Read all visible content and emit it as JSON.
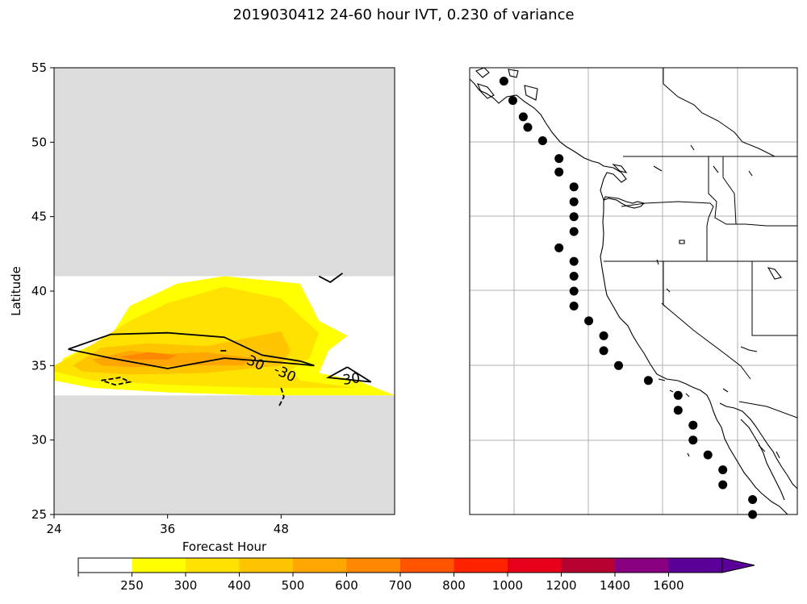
{
  "title": "2019030412 24-60 hour IVT, 0.230 of variance",
  "colors": {
    "missing": "#dcdcdc",
    "contour": "#000000",
    "grid": "#b0b0b0",
    "marker": "#000000"
  },
  "chart_data": [
    {
      "type": "heatmap",
      "panel": "hovmoller",
      "xlabel": "Forecast Hour",
      "ylabel": "Latitude",
      "xlim": [
        24,
        60
      ],
      "ylim": [
        25,
        55
      ],
      "xticks": [
        "24",
        "36",
        "48"
      ],
      "xtick_values": [
        24,
        36,
        48
      ],
      "yticks": [
        "25",
        "30",
        "35",
        "40",
        "45",
        "50",
        "55"
      ],
      "ytick_values": [
        25,
        30,
        35,
        40,
        45,
        50,
        55
      ],
      "data_lat_range": [
        33,
        41
      ],
      "filled_regions": [
        {
          "level": "250",
          "color": "#ffff00",
          "points": [
            [
              24,
              34.5
            ],
            [
              25,
              35.5
            ],
            [
              30,
              37
            ],
            [
              32,
              39
            ],
            [
              37,
              40.5
            ],
            [
              42,
              41
            ],
            [
              50,
              40.5
            ],
            [
              52,
              38
            ],
            [
              55,
              37
            ],
            [
              53,
              36
            ],
            [
              52,
              34.5
            ],
            [
              56,
              34
            ],
            [
              60,
              33
            ],
            [
              54,
              33
            ],
            [
              46,
              33
            ],
            [
              36,
              33.2
            ],
            [
              28,
              33.5
            ],
            [
              24,
              34
            ]
          ]
        },
        {
          "level": "300",
          "color": "#ffe200",
          "points": [
            [
              24,
              35
            ],
            [
              27,
              36
            ],
            [
              32,
              38
            ],
            [
              36,
              39.2
            ],
            [
              42,
              40.3
            ],
            [
              48,
              39.5
            ],
            [
              52,
              37.2
            ],
            [
              51,
              35.5
            ],
            [
              49,
              34.7
            ],
            [
              50,
              34
            ],
            [
              56,
              33.5
            ],
            [
              46,
              33.5
            ],
            [
              36,
              33.7
            ],
            [
              28,
              34
            ],
            [
              24,
              34.6
            ]
          ]
        },
        {
          "level": "400",
          "color": "#ffc400",
          "points": [
            [
              26,
              35
            ],
            [
              29,
              36.2
            ],
            [
              34,
              36.5
            ],
            [
              40,
              36.3
            ],
            [
              48,
              37.3
            ],
            [
              49,
              36
            ],
            [
              48,
              35
            ],
            [
              40,
              34.5
            ],
            [
              32,
              34.4
            ],
            [
              27,
              34.6
            ]
          ]
        },
        {
          "level": "500",
          "color": "#ffa700",
          "points": [
            [
              28,
              35.4
            ],
            [
              32,
              36
            ],
            [
              36,
              35.8
            ],
            [
              40,
              35.9
            ],
            [
              45,
              35.5
            ],
            [
              44,
              35
            ],
            [
              38,
              35
            ],
            [
              32,
              34.9
            ],
            [
              29,
              35
            ]
          ]
        },
        {
          "level": "600",
          "color": "#ff8800",
          "points": [
            [
              31,
              35.6
            ],
            [
              34,
              35.9
            ],
            [
              37,
              35.7
            ],
            [
              36,
              35.4
            ],
            [
              32,
              35.4
            ]
          ]
        }
      ],
      "contours": [
        {
          "style": "solid",
          "points": [
            [
              25.5,
              36.1
            ],
            [
              30,
              37.1
            ],
            [
              36,
              37.2
            ],
            [
              42,
              36.9
            ],
            [
              46,
              35.7
            ],
            [
              50,
              35.3
            ],
            [
              51.5,
              35
            ],
            [
              48,
              35.2
            ],
            [
              42,
              35.5
            ],
            [
              36,
              34.8
            ],
            [
              30,
              35.5
            ],
            [
              25.5,
              36.1
            ]
          ]
        },
        {
          "style": "solid",
          "points": [
            [
              55,
              34.9
            ],
            [
              53,
              34.2
            ],
            [
              57.5,
              33.9
            ],
            [
              55,
              34.9
            ]
          ]
        },
        {
          "style": "solid",
          "points": [
            [
              52,
              41
            ],
            [
              53.2,
              40.6
            ],
            [
              54.5,
              41.2
            ]
          ]
        },
        {
          "style": "solid",
          "points": [
            [
              41.6,
              36
            ],
            [
              42.2,
              36
            ]
          ]
        },
        {
          "style": "dashed",
          "points": [
            [
              29,
              34
            ],
            [
              31,
              34.2
            ],
            [
              32,
              33.9
            ],
            [
              30.5,
              33.7
            ],
            [
              29,
              34
            ]
          ]
        },
        {
          "style": "dashed",
          "points": [
            [
              48,
              33.5
            ],
            [
              48.3,
              32.9
            ],
            [
              47.8,
              32.3
            ]
          ]
        }
      ],
      "contour_labels": [
        {
          "text": "30",
          "x": 45.1,
          "y": 34.9,
          "rotate": 25
        },
        {
          "text": "-30",
          "x": 48.2,
          "y": 34.2,
          "rotate": 25
        },
        {
          "text": "30",
          "x": 55.5,
          "y": 33.8,
          "rotate": -8
        }
      ]
    },
    {
      "type": "map",
      "panel": "west-coast-map",
      "grid_lat_rows": 5,
      "grid_lon_cols": 4,
      "markers_latlon": [
        [
          54.1,
          -131.5
        ],
        [
          52.8,
          -130.9
        ],
        [
          51.7,
          -130.2
        ],
        [
          51.0,
          -129.9
        ],
        [
          50.1,
          -128.9
        ],
        [
          48.9,
          -127.8
        ],
        [
          48.0,
          -127.8
        ],
        [
          47.0,
          -126.8
        ],
        [
          46.0,
          -126.8
        ],
        [
          45.0,
          -126.8
        ],
        [
          44.0,
          -126.8
        ],
        [
          42.9,
          -127.8
        ],
        [
          42.0,
          -126.8
        ],
        [
          41.0,
          -126.8
        ],
        [
          40.0,
          -126.8
        ],
        [
          39.0,
          -126.8
        ],
        [
          38.0,
          -125.8
        ],
        [
          37.0,
          -124.8
        ],
        [
          36.0,
          -124.8
        ],
        [
          35.0,
          -123.8
        ],
        [
          34.0,
          -121.8
        ],
        [
          33.0,
          -119.8
        ],
        [
          32.0,
          -119.8
        ],
        [
          31.0,
          -118.8
        ],
        [
          30.0,
          -118.8
        ],
        [
          29.0,
          -117.8
        ],
        [
          28.0,
          -116.8
        ],
        [
          27.0,
          -116.8
        ],
        [
          26.0,
          -114.8
        ],
        [
          25.0,
          -114.8
        ]
      ]
    }
  ],
  "colorbar": {
    "ticks": [
      "250",
      "300",
      "400",
      "500",
      "600",
      "700",
      "800",
      "1000",
      "1200",
      "1400",
      "1600"
    ],
    "colors": [
      "#ffffff",
      "#ffff00",
      "#ffe200",
      "#ffc400",
      "#ffa700",
      "#ff8800",
      "#ff5500",
      "#ff2200",
      "#e8001a",
      "#b50030",
      "#880080",
      "#5a0099"
    ]
  }
}
